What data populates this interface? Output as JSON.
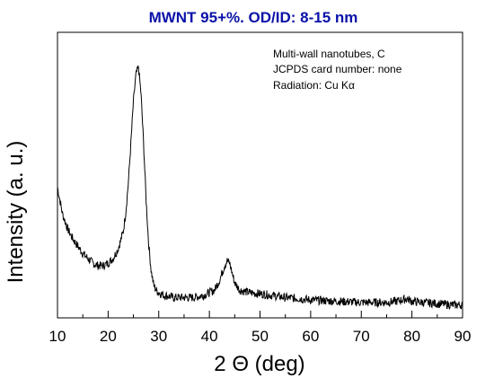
{
  "chart_data": {
    "type": "line",
    "title": "MWNT   95+%. OD/ID: 8-15 nm",
    "xlabel": "2 Θ (deg)",
    "ylabel": "Intensity (a. u.)",
    "xlim": [
      10,
      90
    ],
    "ylim": [
      0,
      1
    ],
    "x_ticks": [
      "10",
      "20",
      "30",
      "40",
      "50",
      "60",
      "70",
      "80",
      "90"
    ],
    "y_tick_labels_shown": false,
    "grid": false,
    "legend": false,
    "annotations": [
      "Multi-wall nanotubes, C",
      "JCPDS card number: none",
      "Radiation: Cu Kα"
    ],
    "series": [
      {
        "color": "#000000",
        "x": [
          10,
          11,
          12,
          13,
          14,
          15,
          16,
          17,
          18,
          19,
          20,
          21,
          22,
          23,
          23.5,
          24,
          24.5,
          25,
          25.5,
          26,
          26.5,
          27,
          27.5,
          28,
          28.5,
          29,
          29.5,
          30,
          31,
          32,
          33,
          34,
          35,
          36,
          37,
          38,
          39,
          40,
          41,
          42,
          43,
          43.5,
          44,
          44.5,
          45,
          46,
          47,
          48,
          50,
          52,
          55,
          58,
          60,
          65,
          70,
          75,
          77,
          78,
          79,
          80,
          82,
          85,
          88,
          90
        ],
        "y": [
          0.5,
          0.39,
          0.33,
          0.29,
          0.26,
          0.23,
          0.21,
          0.19,
          0.18,
          0.18,
          0.19,
          0.21,
          0.25,
          0.32,
          0.4,
          0.52,
          0.68,
          0.85,
          0.96,
          0.99,
          0.88,
          0.68,
          0.45,
          0.27,
          0.16,
          0.1,
          0.08,
          0.07,
          0.06,
          0.055,
          0.05,
          0.05,
          0.05,
          0.05,
          0.05,
          0.055,
          0.06,
          0.07,
          0.08,
          0.12,
          0.18,
          0.2,
          0.19,
          0.15,
          0.11,
          0.08,
          0.075,
          0.07,
          0.065,
          0.06,
          0.05,
          0.045,
          0.04,
          0.035,
          0.03,
          0.03,
          0.035,
          0.04,
          0.045,
          0.035,
          0.03,
          0.025,
          0.02,
          0.02
        ]
      }
    ]
  }
}
